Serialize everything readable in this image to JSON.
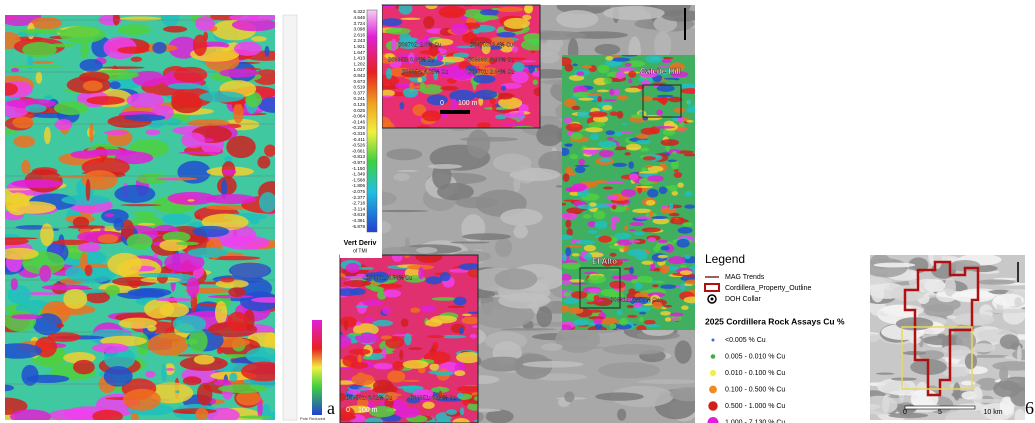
{
  "panel_a": {
    "label": "a",
    "footer": "Pole Reduced"
  },
  "colorbar": {
    "title": "Vert Deriv",
    "subtitle": "of TMI",
    "ticks": [
      "6.322",
      "4.646",
      "3.724",
      "3.098",
      "2.616",
      "2.243",
      "1.921",
      "1.647",
      "1.413",
      "1.202",
      "1.017",
      "0.843",
      "0.673",
      "0.519",
      "0.377",
      "0.241",
      "0.125",
      "0.025",
      "-0.064",
      "-0.146",
      "-0.226",
      "-0.315",
      "-0.411",
      "-0.526",
      "-0.661",
      "-0.813",
      "-0.974",
      "-1.150",
      "-1.349",
      "-1.568",
      "-1.806",
      "-2.075",
      "-2.377",
      "-2.718",
      "-3.114",
      "-3.619",
      "-4.361",
      "-5.878"
    ]
  },
  "inset_top": {
    "samples": [
      "B06702: 2.0% Cu",
      "B06703: 3.4% Cu",
      "B06655: 0.08% Cu",
      "B06699: 3.99% Cu",
      "B06654: 4.05% Cu",
      "B06701: 2.64% Cu"
    ],
    "scale": [
      "0",
      "100 m"
    ]
  },
  "inset_bottom": {
    "samples": [
      "B06601: 3.86% Cu",
      "B06501: 3.02% Cu",
      "B06651: 3.44% Cu"
    ],
    "scale": [
      "0",
      "100 m"
    ]
  },
  "map": {
    "places": [
      "Calcite Hill",
      "El Alto"
    ],
    "samples": [
      "B06612: 4.475% Cu"
    ]
  },
  "legend": {
    "title": "Legend",
    "items": [
      "MAG Trends",
      "Cordillera_Property_Outline",
      "DOH Collar"
    ],
    "assay_title": "2025 Cordillera Rock Assays Cu %",
    "assays": [
      {
        "label": "<0.005 % Cu",
        "color": "#3a6fd8"
      },
      {
        "label": "0.005 - 0.010 % Cu",
        "color": "#3cb043"
      },
      {
        "label": "0.010 - 0.100 % Cu",
        "color": "#f2ee4a"
      },
      {
        "label": "0.100 - 0.500 % Cu",
        "color": "#f08a24"
      },
      {
        "label": "0.500 - 1.000 % Cu",
        "color": "#d0201c"
      },
      {
        "label": "1.000 - 7.130 % Cu",
        "color": "#e020d8"
      }
    ]
  },
  "panel_b": {
    "label": "6",
    "scale": [
      "0",
      "5",
      "10 km"
    ]
  }
}
